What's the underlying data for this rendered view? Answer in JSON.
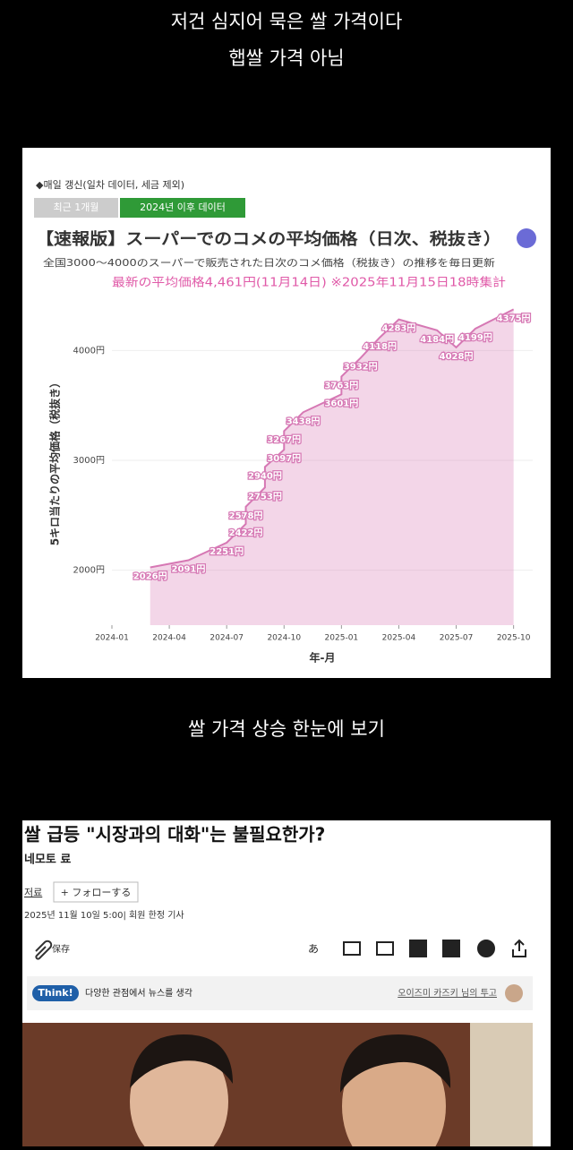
{
  "captions_top": [
    "저건 심지어 묵은 쌀 가격이다",
    "햅쌀 가격 아님"
  ],
  "chart_image": {
    "type": "line",
    "note": "◆매일 갱신(일차 데이터, 세금 제외)",
    "tabs": [
      "최근 1개월",
      "2024년 이후 데이터"
    ],
    "title": "【速報版】スーパーでのコメの平均価格（日次、税抜き）",
    "subtitle": "全国3000～4000のスーパーで販売された日次のコメ価格（税抜き）の推移を毎日更新",
    "highlight": "最新の平均価格4,461円(11月14日) ※2025年11月15日18時集計",
    "y_label": "5キロ当たりの平均価格（税抜き）",
    "x_label": "年-月",
    "x": [
      "2024-03",
      "2024-05",
      "2024-07",
      "2024-08",
      "2024-08",
      "2024-09",
      "2024-09",
      "2024-10",
      "2024-10",
      "2024-11",
      "2025-01",
      "2025-01",
      "2025-02",
      "2025-03",
      "2025-04",
      "2025-06",
      "2025-07",
      "2025-08",
      "2025-10"
    ],
    "series": [
      {
        "color": "#d678b4",
        "values": [
          2026,
          2091,
          2251,
          2422,
          2578,
          2753,
          2940,
          3097,
          3267,
          3438,
          3601,
          3763,
          3932,
          4118,
          4283,
          4184,
          4028,
          4199,
          4375
        ],
        "value_labels": [
          "2026円",
          "2091円",
          "2251円",
          "2422円",
          "2578円",
          "2753円",
          "2940円",
          "3097円",
          "3267円",
          "3438円",
          "3601円",
          "3763円",
          "3932円",
          "4118円",
          "4283円",
          "4184円",
          "4028円",
          "4199円",
          "4375円"
        ]
      }
    ],
    "xlim": [
      "2024-01",
      "2025-11"
    ],
    "xticks": [
      "2024-01",
      "2024-04",
      "2024-07",
      "2024-10",
      "2025-01",
      "2025-04",
      "2025-07",
      "2025-10"
    ],
    "ylim": [
      1500,
      4500
    ],
    "yticks": [
      {
        "value": 2000,
        "label": "2000円"
      },
      {
        "value": 3000,
        "label": "3000円"
      },
      {
        "value": 4000,
        "label": "4000円"
      }
    ]
  },
  "caption_mid": "쌀 가격 상승 한눈에 보기",
  "article": {
    "title": "쌀 급등 \"시장과의 대화\"는 불필요한가?",
    "author": "네모토 료",
    "author_link": "저료",
    "follow": "+ フォローする",
    "date": "2025년 11월 10일 5:00| 회원 한정 기사",
    "save": "保存",
    "think_badge": "Think!",
    "think_text": "다양한 관점에서 뉴스를 생각",
    "contributor": "오이즈미 카즈키 님의 투고"
  }
}
